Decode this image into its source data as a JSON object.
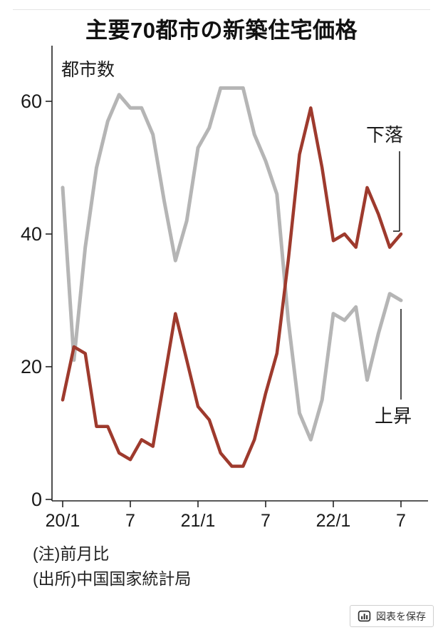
{
  "header": {
    "title": "主要70都市の新築住宅価格"
  },
  "chart_data": {
    "type": "line",
    "title": "主要70都市の新築住宅価格",
    "ylabel": "都市数",
    "xlabel": "",
    "ylim": [
      0,
      65
    ],
    "grid": false,
    "legend_position": "inline-annotations",
    "y_ticks": [
      0,
      20,
      40,
      60
    ],
    "x_ticks": [
      {
        "index": 0,
        "label": "20/1"
      },
      {
        "index": 6,
        "label": "7"
      },
      {
        "index": 12,
        "label": "21/1"
      },
      {
        "index": 18,
        "label": "7"
      },
      {
        "index": 24,
        "label": "22/1"
      },
      {
        "index": 30,
        "label": "7"
      }
    ],
    "months": [
      "20/1",
      "20/2",
      "20/3",
      "20/4",
      "20/5",
      "20/6",
      "20/7",
      "20/8",
      "20/9",
      "20/10",
      "20/11",
      "20/12",
      "21/1",
      "21/2",
      "21/3",
      "21/4",
      "21/5",
      "21/6",
      "21/7",
      "21/8",
      "21/9",
      "21/10",
      "21/11",
      "21/12",
      "22/1",
      "22/2",
      "22/3",
      "22/4",
      "22/5",
      "22/6",
      "22/7"
    ],
    "series": [
      {
        "name": "上昇",
        "color": "#b5b5b5",
        "values": [
          47,
          21,
          38,
          50,
          57,
          61,
          59,
          59,
          55,
          45,
          36,
          42,
          53,
          56,
          62,
          62,
          62,
          55,
          51,
          46,
          27,
          13,
          9,
          15,
          28,
          27,
          29,
          18,
          25,
          31,
          30
        ]
      },
      {
        "name": "下落",
        "color": "#9e3a2d",
        "values": [
          15,
          23,
          22,
          11,
          11,
          7,
          6,
          9,
          8,
          18,
          28,
          21,
          14,
          12,
          7,
          5,
          5,
          9,
          16,
          22,
          36,
          52,
          59,
          50,
          39,
          40,
          38,
          47,
          43,
          38,
          40
        ]
      }
    ],
    "annotations": [
      {
        "label": "下落",
        "series": "下落"
      },
      {
        "label": "上昇",
        "series": "上昇"
      }
    ]
  },
  "footer": {
    "note": "(注)前月比",
    "source": "(出所)中国国家統計局"
  },
  "save_button": {
    "label": "図表を保存",
    "icon": "bar-chart-icon"
  }
}
